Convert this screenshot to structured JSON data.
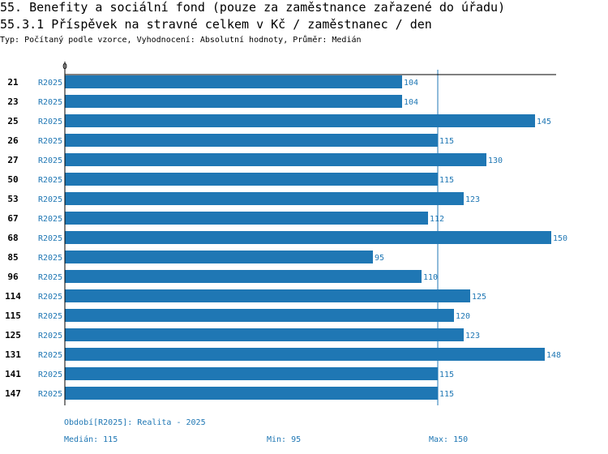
{
  "header": {
    "title": "55. Benefity a sociální fond (pouze za zaměstnance zařazené do úřadu)",
    "subtitle_title": "55.3.1 Příspěvek na stravné celkem v Kč / zaměstnanec / den",
    "type_line": "Typ: Počítaný podle vzorce, Vyhodnocení: Absolutní hodnoty, Průměr: Medián"
  },
  "colors": {
    "bar": "#1f77b4",
    "axis": "#000000",
    "label": "#1f77b4"
  },
  "chart_data": {
    "type": "bar",
    "orientation": "horizontal",
    "x_tick_label": "0",
    "xlim": [
      0,
      150
    ],
    "series_name": "R2025",
    "categories": [
      "21",
      "23",
      "25",
      "26",
      "27",
      "50",
      "53",
      "67",
      "68",
      "85",
      "96",
      "114",
      "115",
      "125",
      "131",
      "141",
      "147"
    ],
    "series_labels": [
      "R2025",
      "R2025",
      "R2025",
      "R2025",
      "R2025",
      "R2025",
      "R2025",
      "R2025",
      "R2025",
      "R2025",
      "R2025",
      "R2025",
      "R2025",
      "R2025",
      "R2025",
      "R2025",
      "R2025"
    ],
    "values": [
      104,
      104,
      145,
      115,
      130,
      115,
      123,
      112,
      150,
      95,
      110,
      125,
      120,
      123,
      148,
      115,
      115
    ],
    "median": 115
  },
  "footer": {
    "period": "Období[R2025]: Realita - 2025",
    "median": "Medián: 115",
    "min": "Min: 95",
    "max": "Max: 150"
  }
}
